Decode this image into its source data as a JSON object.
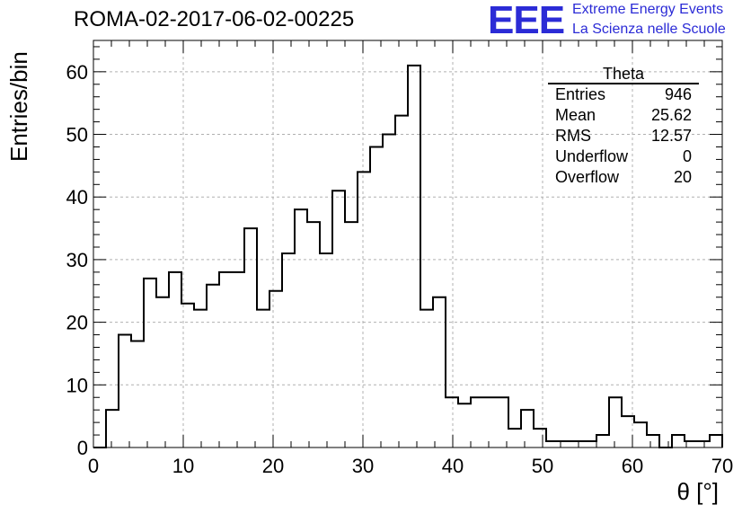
{
  "title": "ROMA-02-2017-06-02-00225",
  "logo": {
    "mark": "EEE",
    "line1": "Extreme Energy Events",
    "line2": "La Scienza nelle Scuole",
    "color": "#2b2bd6"
  },
  "stats_box": {
    "title": "Theta",
    "rows": [
      {
        "label": "Entries",
        "value": "946"
      },
      {
        "label": "Mean",
        "value": "25.62"
      },
      {
        "label": "RMS",
        "value": "12.57"
      },
      {
        "label": "Underflow",
        "value": "0"
      },
      {
        "label": "Overflow",
        "value": "20"
      }
    ]
  },
  "chart_data": {
    "type": "bar",
    "style": "step-histogram",
    "title": "ROMA-02-2017-06-02-00225",
    "xlabel": "θ [°]",
    "ylabel": "Entries/bin",
    "xlim": [
      0,
      70
    ],
    "ylim": [
      0,
      65
    ],
    "grid": true,
    "bin_width": 1.4,
    "x_ticks": [
      0,
      10,
      20,
      30,
      40,
      50,
      60,
      70
    ],
    "y_ticks": [
      0,
      10,
      20,
      30,
      40,
      50,
      60
    ],
    "values": [
      0,
      6,
      18,
      17,
      27,
      24,
      28,
      23,
      22,
      26,
      28,
      28,
      35,
      22,
      25,
      31,
      38,
      36,
      31,
      41,
      36,
      44,
      48,
      50,
      53,
      61,
      22,
      24,
      8,
      7,
      8,
      8,
      8,
      3,
      6,
      3,
      1,
      1,
      1,
      1,
      2,
      8,
      5,
      4,
      2,
      0,
      2,
      1,
      1,
      2
    ]
  }
}
